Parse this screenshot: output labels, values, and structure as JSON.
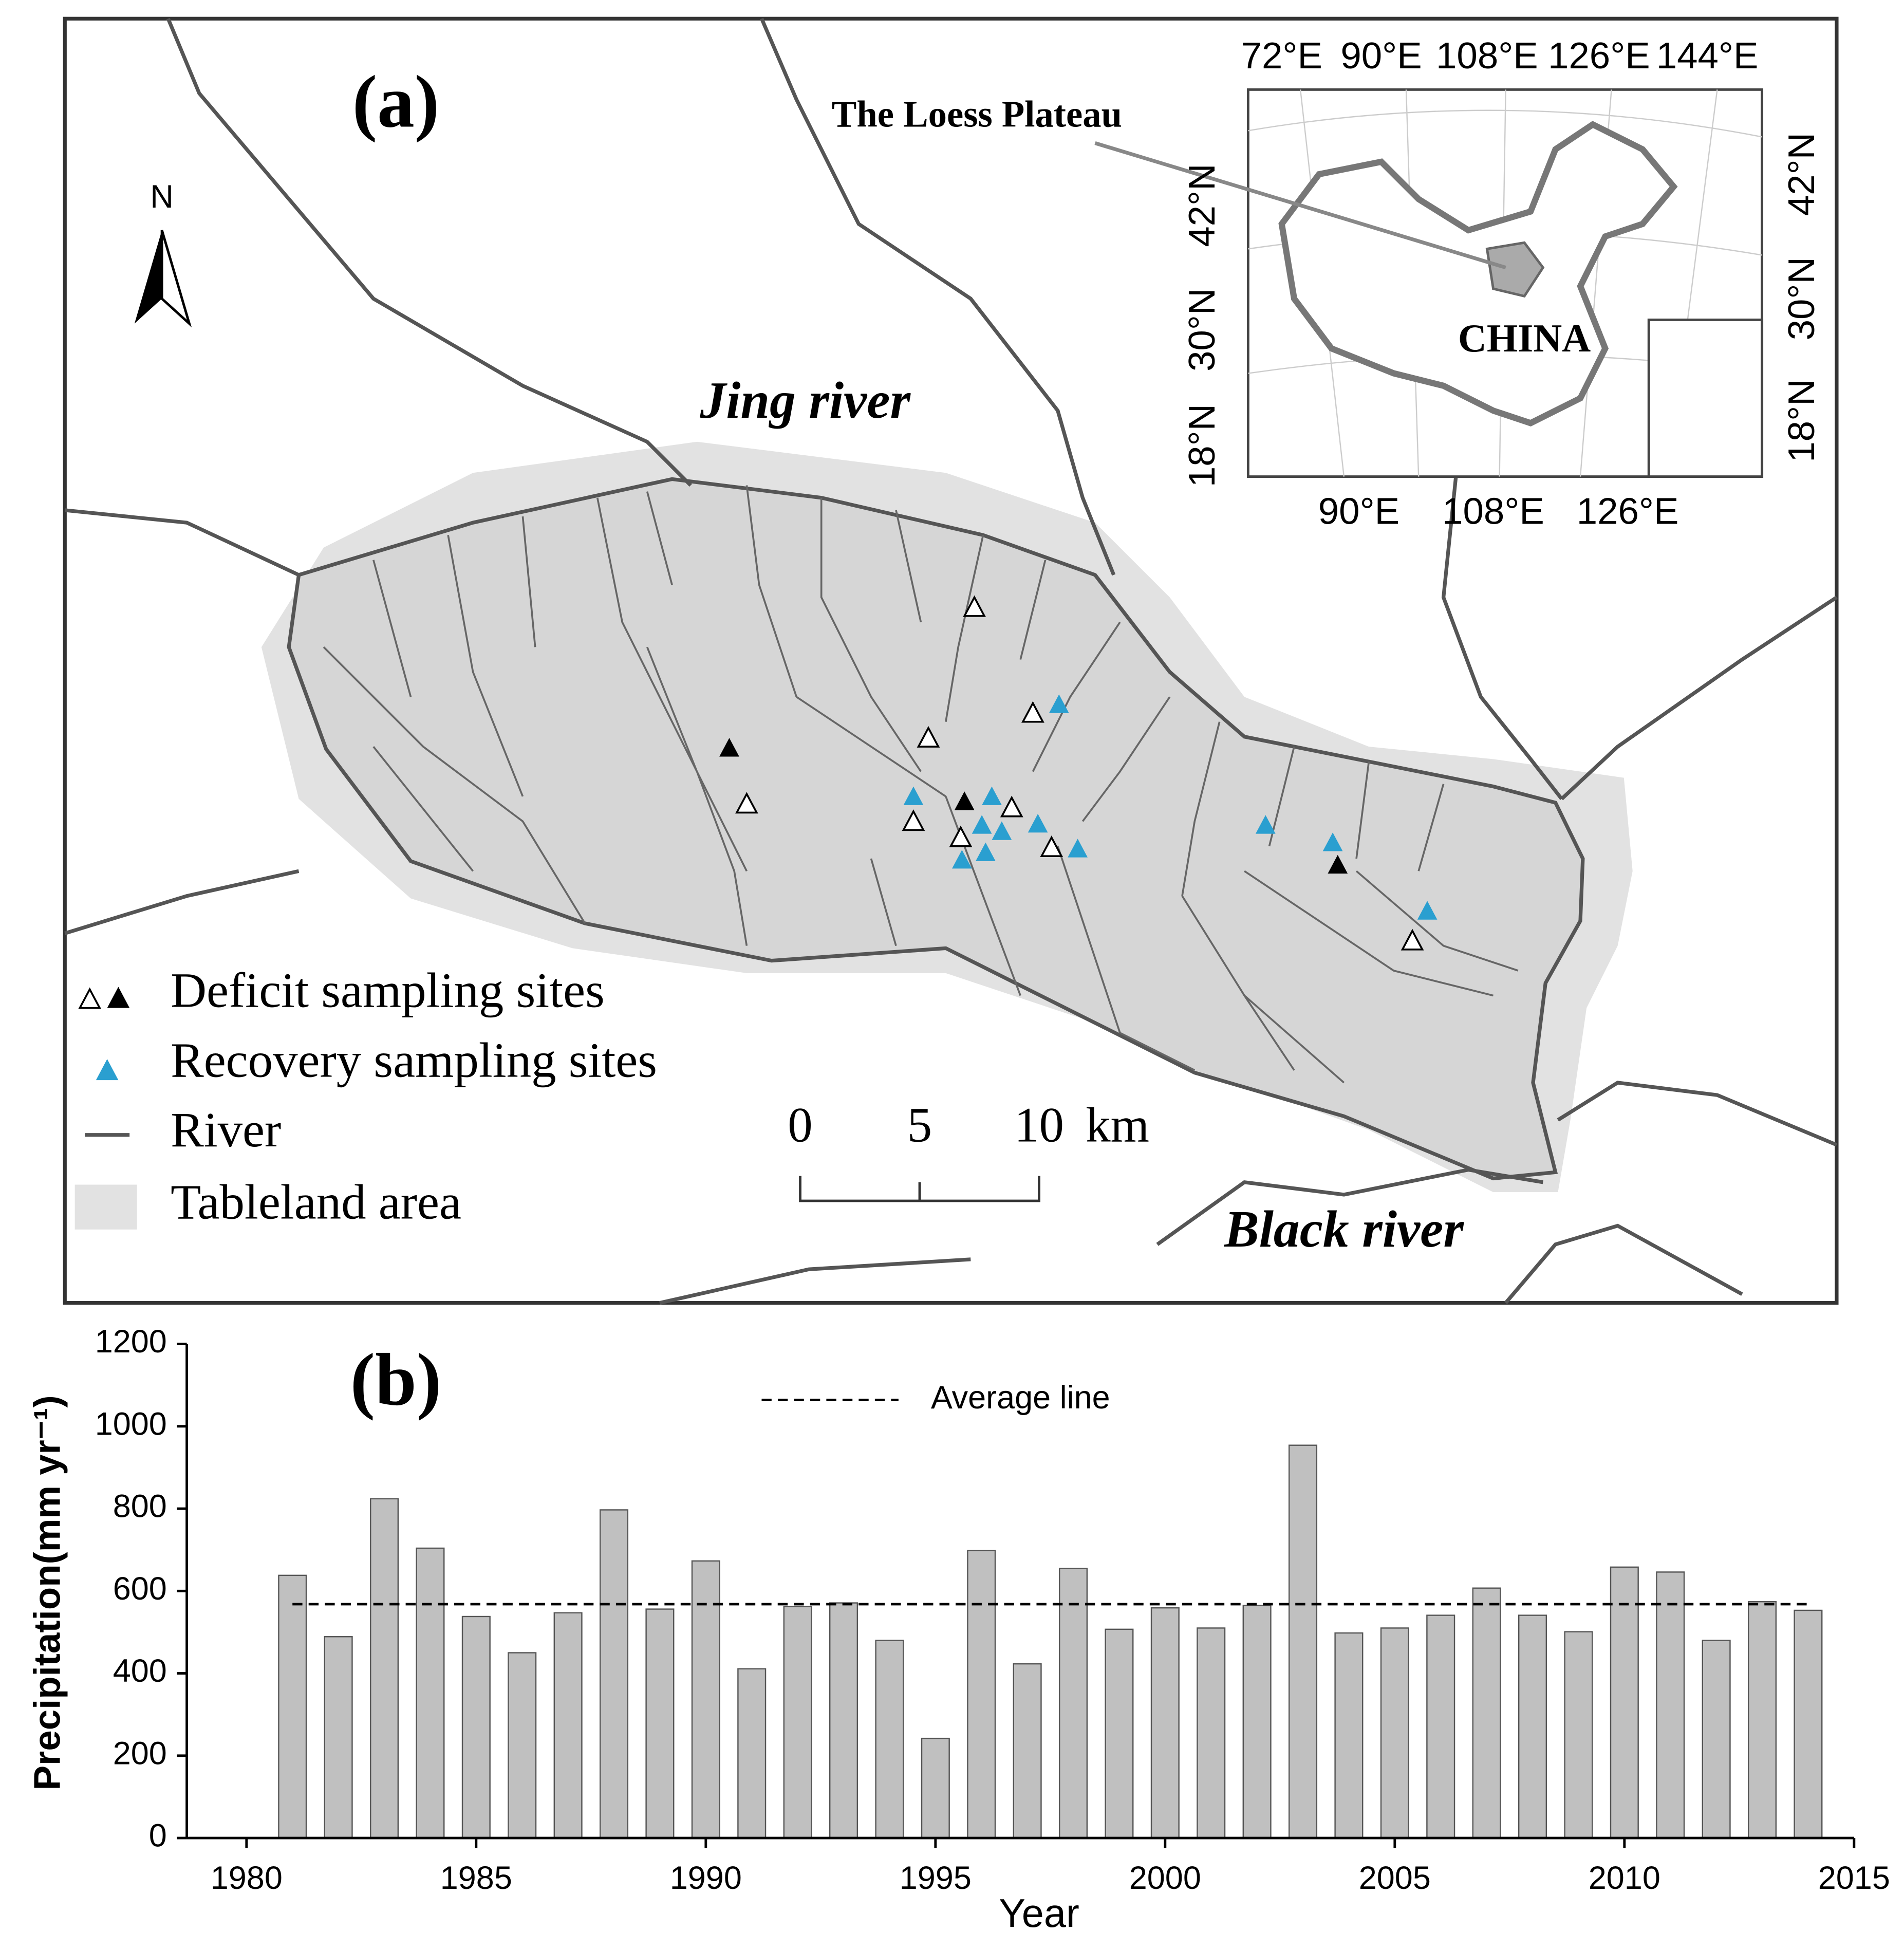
{
  "map": {
    "panel_label": "(a)",
    "north": "N",
    "rivers": [
      "Jing river",
      "Black river"
    ],
    "inset": {
      "title": "The Loess Plateau",
      "country": "CHINA",
      "top_lon": [
        "72°E",
        "90°E",
        "108°E",
        "126°E",
        "144°E"
      ],
      "bottom_lon": [
        "90°E",
        "108°E",
        "126°E"
      ],
      "left_lat": [
        "18°N",
        "30°N",
        "42°N"
      ],
      "right_lat": [
        "18°N",
        "30°N",
        "42°N"
      ]
    },
    "legend": [
      "Deficit sampling sites",
      "Recovery sampling sites",
      "River",
      "Tableland area"
    ],
    "scale": [
      "0",
      "5",
      "10",
      "km"
    ]
  },
  "chart_data": {
    "type": "bar",
    "panel_label": "(b)",
    "x_label": "Year",
    "y_label": "Precipitation(mm yr⁻¹)",
    "x": [
      1981,
      1982,
      1983,
      1984,
      1985,
      1986,
      1987,
      1988,
      1989,
      1990,
      1991,
      1992,
      1993,
      1994,
      1995,
      1996,
      1997,
      1998,
      1999,
      2000,
      2001,
      2002,
      2003,
      2004,
      2005,
      2006,
      2007,
      2008,
      2009,
      2010,
      2011,
      2012,
      2013,
      2014
    ],
    "values": [
      638,
      489,
      824,
      704,
      538,
      450,
      547,
      797,
      556,
      673,
      411,
      562,
      571,
      480,
      242,
      698,
      423,
      655,
      507,
      559,
      510,
      565,
      954,
      498,
      510,
      541,
      607,
      541,
      501,
      658,
      646,
      480,
      574,
      553
    ],
    "color": "#c0c0c0",
    "average": {
      "name": "Average line",
      "value": 568
    },
    "xlim": [
      1980,
      2015
    ],
    "xticks": [
      1980,
      1985,
      1990,
      1995,
      2000,
      2005,
      2010,
      2015
    ],
    "ylim": [
      0,
      1200
    ],
    "yticks": [
      0,
      200,
      400,
      600,
      800,
      1000,
      1200
    ]
  }
}
